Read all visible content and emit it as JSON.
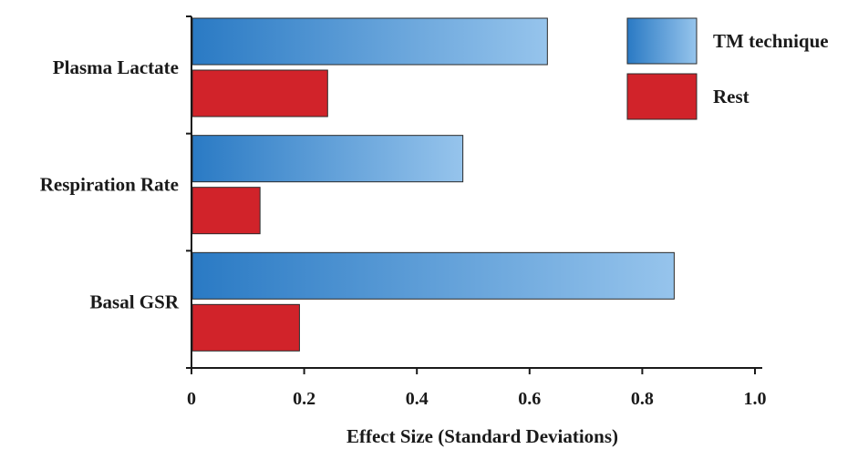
{
  "chart_data": {
    "type": "bar",
    "orientation": "horizontal",
    "categories": [
      "Plasma Lactate",
      "Respiration Rate",
      "Basal GSR"
    ],
    "series": [
      {
        "name": "TM technique",
        "values": [
          0.63,
          0.48,
          0.855
        ],
        "color": "#2a7ac4",
        "color_light": "#96c4ec"
      },
      {
        "name": "Rest",
        "values": [
          0.24,
          0.12,
          0.19
        ],
        "color": "#d1232a"
      }
    ],
    "xlabel": "Effect Size (Standard Deviations)",
    "ylabel": "",
    "xlim": [
      0,
      1.0
    ],
    "xticks": [
      0,
      0.2,
      0.4,
      0.6,
      0.8,
      1.0
    ],
    "xtick_labels": [
      "0",
      "0.2",
      "0.4",
      "0.6",
      "0.8",
      "1.0"
    ],
    "legend_position": "top-right",
    "grid": false
  }
}
